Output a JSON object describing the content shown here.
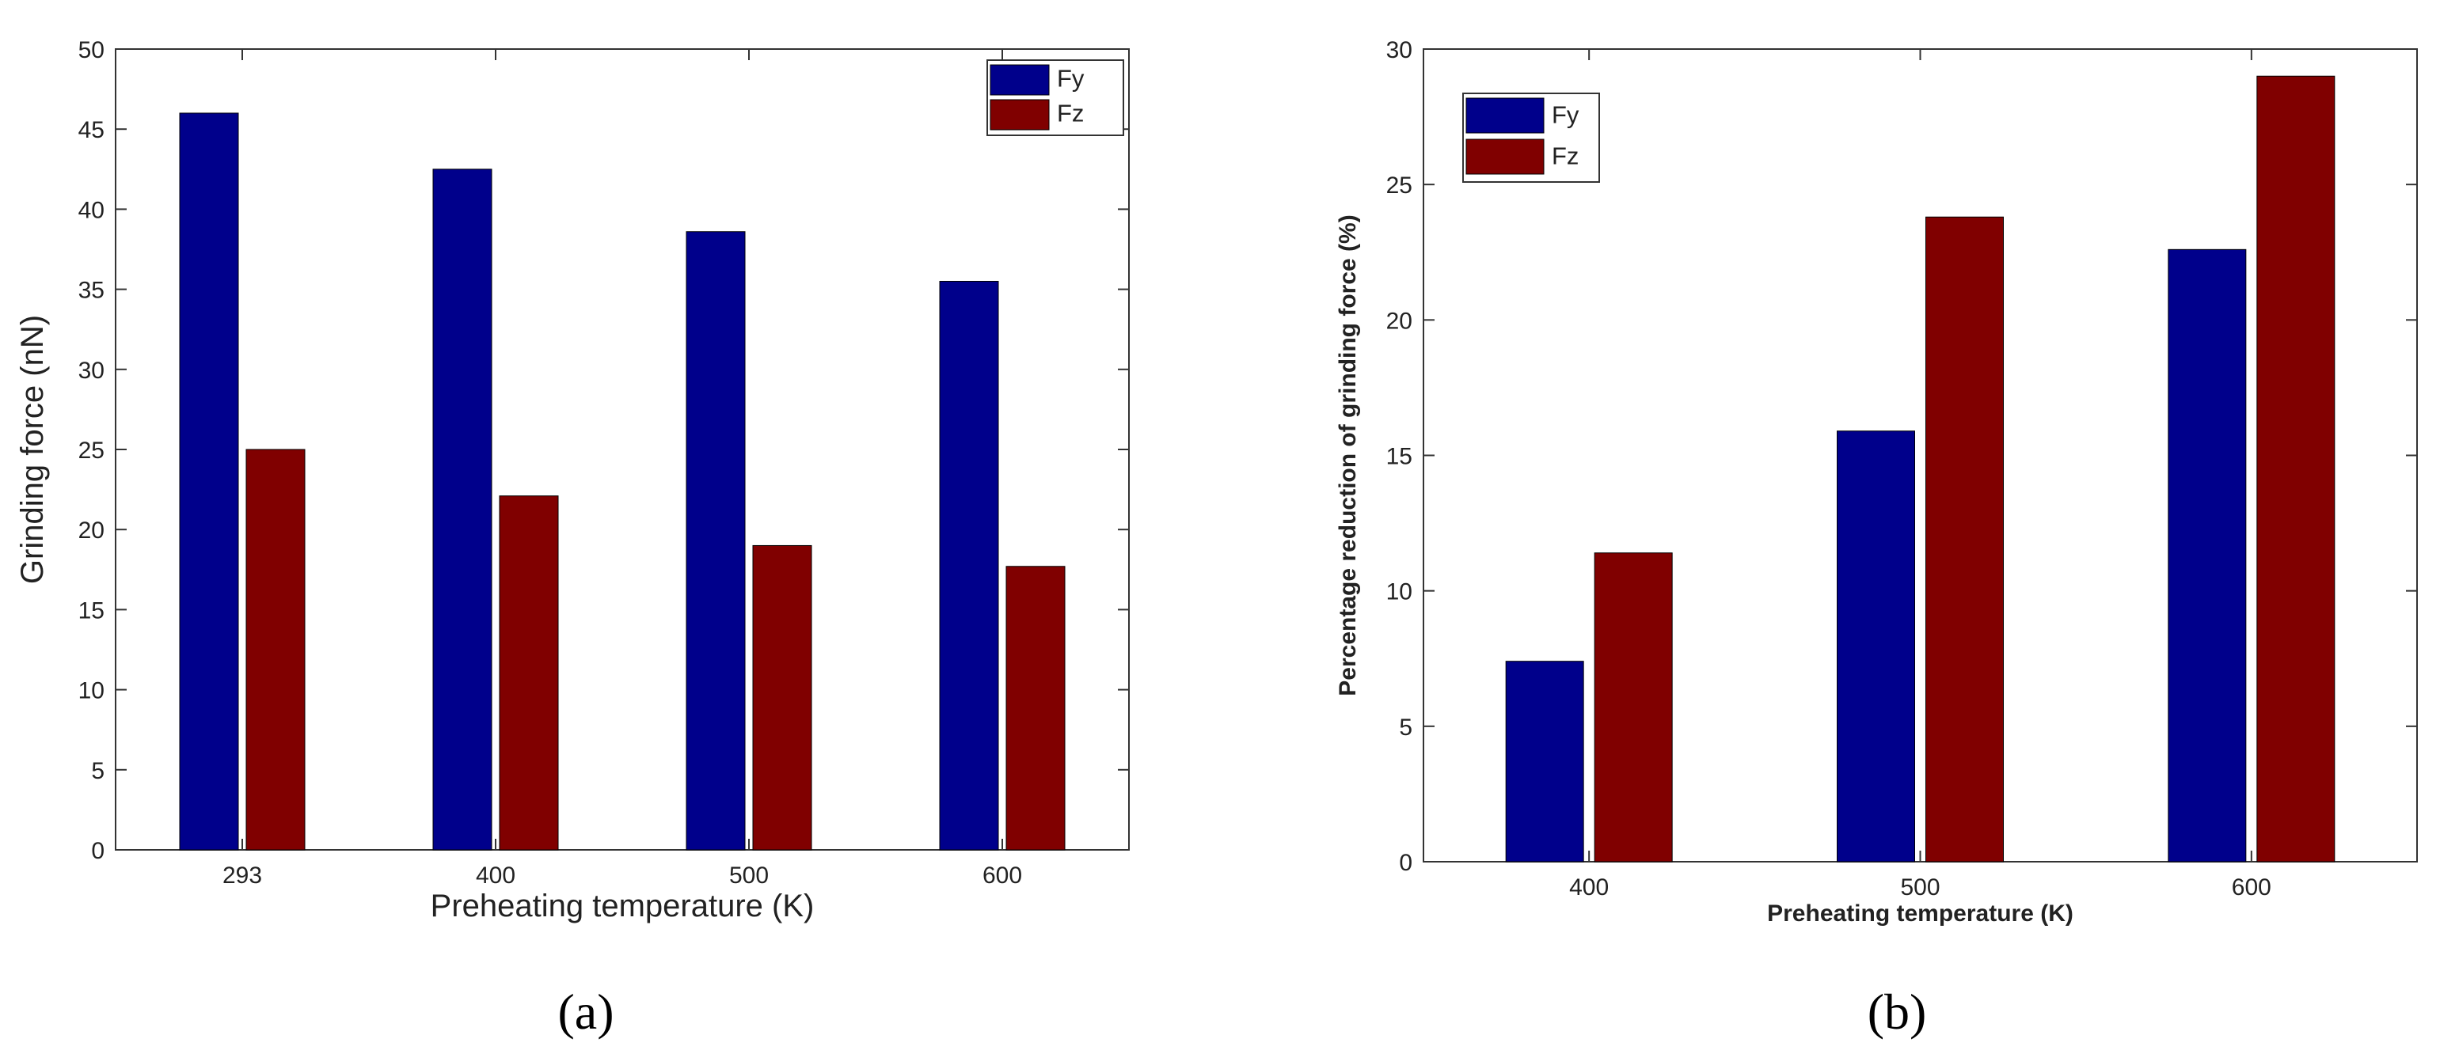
{
  "colors": {
    "Fy": "#00008b",
    "Fz": "#800000",
    "axis": "#333333"
  },
  "chart_data": [
    {
      "type": "bar",
      "panel_label": "(a)",
      "categories": [
        "293",
        "400",
        "500",
        "600"
      ],
      "series": [
        {
          "name": "Fy",
          "values": [
            46.0,
            42.5,
            38.6,
            35.5
          ]
        },
        {
          "name": "Fz",
          "values": [
            25.0,
            22.1,
            19.0,
            17.7
          ]
        }
      ],
      "xlabel": "Preheating temperature (K)",
      "ylabel": "Grinding force (nN)",
      "ylim": [
        0,
        50
      ],
      "yticks": [
        "0",
        "5",
        "10",
        "15",
        "20",
        "25",
        "30",
        "35",
        "40",
        "45",
        "50"
      ],
      "legend_position": "top-right",
      "grid": false
    },
    {
      "type": "bar",
      "panel_label": "(b)",
      "categories": [
        "400",
        "500",
        "600"
      ],
      "series": [
        {
          "name": "Fy",
          "values": [
            7.4,
            15.9,
            22.6
          ]
        },
        {
          "name": "Fz",
          "values": [
            11.4,
            23.8,
            29.0
          ]
        }
      ],
      "xlabel": "Preheating temperature (K)",
      "ylabel": "Percentage reduction of grinding force (%)",
      "ylim": [
        0,
        30
      ],
      "yticks": [
        "0",
        "5",
        "10",
        "15",
        "20",
        "25",
        "30"
      ],
      "legend_position": "top-left",
      "grid": false
    }
  ]
}
